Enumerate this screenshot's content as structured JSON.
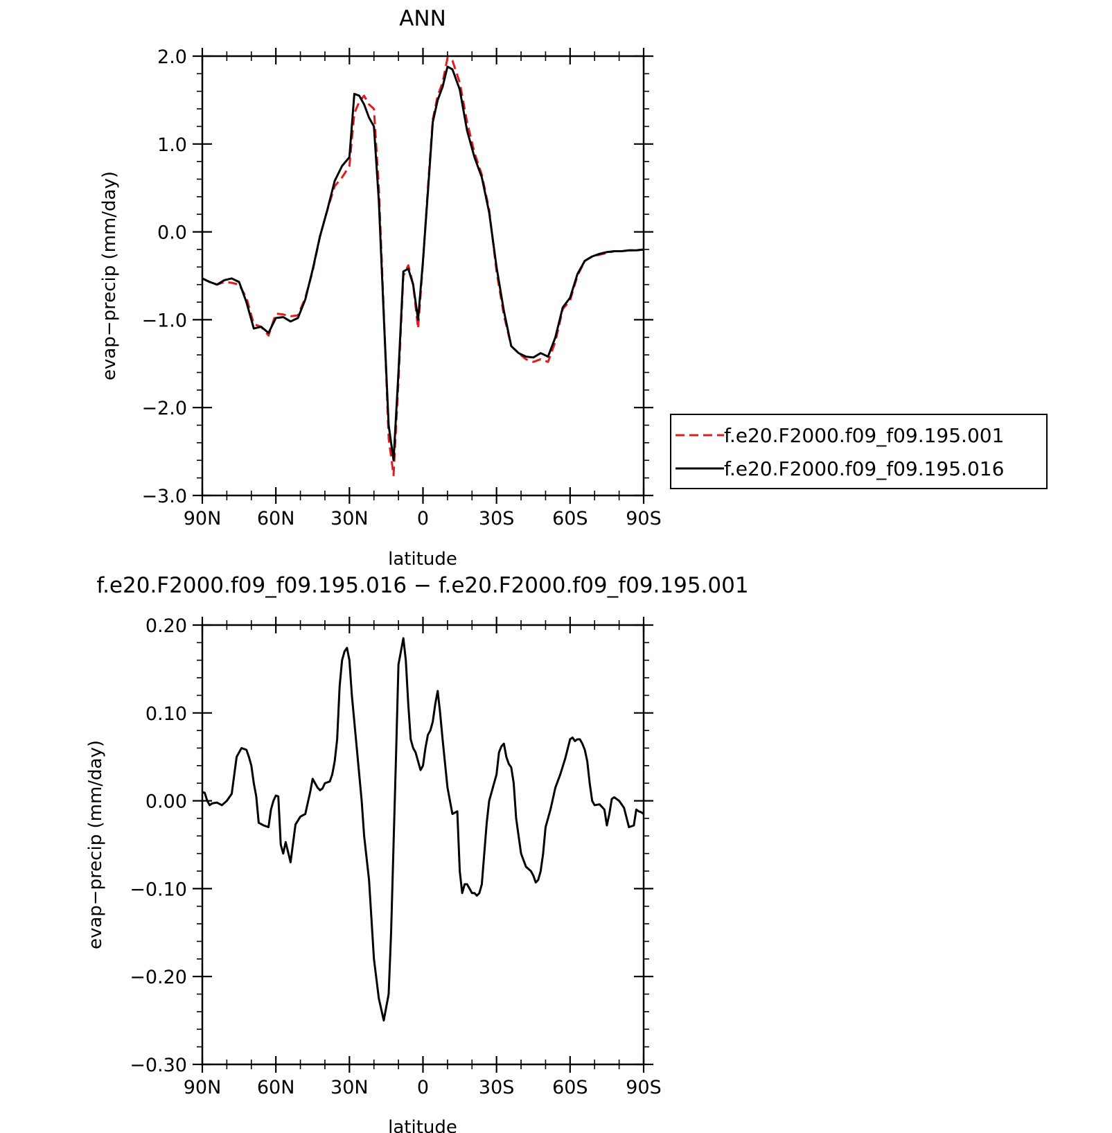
{
  "chart_data": [
    {
      "type": "line",
      "title": "ANN",
      "xlabel": "latitude",
      "ylabel": "evap−precip (mm/day)",
      "xlim": [
        90,
        -90
      ],
      "ylim": [
        -3.0,
        2.0
      ],
      "x_ticks": [
        90,
        60,
        30,
        0,
        -30,
        -60,
        -90
      ],
      "x_tick_labels": [
        "90N",
        "60N",
        "30N",
        "0",
        "30S",
        "60S",
        "90S"
      ],
      "y_ticks": [
        -3,
        -2,
        -1,
        0,
        1,
        2
      ],
      "y_tick_labels": [
        "−3.0",
        "−2.0",
        "−1.0",
        "0.0",
        "1.0",
        "2.0"
      ],
      "legend_position": "right",
      "series": [
        {
          "name": "f.e20.F2000.f09_f09.195.001",
          "color": "#e41a1c",
          "dash": "dashed",
          "x": [
            90,
            87,
            84,
            81,
            78,
            75,
            72,
            69,
            66,
            63,
            60,
            57,
            54,
            51,
            48,
            45,
            42,
            39,
            36,
            33,
            30,
            28,
            26,
            24,
            22,
            20,
            18,
            16,
            14,
            12,
            10,
            8,
            6,
            4,
            2,
            0,
            -2,
            -4,
            -6,
            -8,
            -10,
            -12,
            -15,
            -18,
            -21,
            -24,
            -27,
            -30,
            -33,
            -36,
            -39,
            -42,
            -45,
            -48,
            -51,
            -54,
            -57,
            -60,
            -63,
            -66,
            -69,
            -72,
            -75,
            -78,
            -81,
            -84,
            -87,
            -90
          ],
          "y": [
            -0.53,
            -0.57,
            -0.6,
            -0.57,
            -0.58,
            -0.6,
            -0.75,
            -1.05,
            -1.08,
            -1.18,
            -0.93,
            -0.94,
            -0.96,
            -0.95,
            -0.75,
            -0.45,
            -0.05,
            0.25,
            0.52,
            0.62,
            0.75,
            1.35,
            1.48,
            1.55,
            1.45,
            1.4,
            0.5,
            -0.9,
            -2.35,
            -2.77,
            -1.7,
            -0.5,
            -0.38,
            -0.6,
            -1.1,
            -0.35,
            0.5,
            1.28,
            1.55,
            1.7,
            1.98,
            1.95,
            1.7,
            1.25,
            0.9,
            0.65,
            0.25,
            -0.45,
            -0.95,
            -1.3,
            -1.38,
            -1.45,
            -1.48,
            -1.45,
            -1.48,
            -1.25,
            -0.88,
            -0.78,
            -0.5,
            -0.33,
            -0.28,
            -0.26,
            -0.24,
            -0.22,
            -0.22,
            -0.21,
            -0.21,
            -0.2
          ]
        },
        {
          "name": "f.e20.F2000.f09_f09.195.016",
          "color": "#000000",
          "dash": "solid",
          "x": [
            90,
            87,
            84,
            81,
            78,
            75,
            72,
            69,
            66,
            63,
            60,
            57,
            54,
            51,
            48,
            45,
            42,
            39,
            36,
            33,
            30,
            28,
            26,
            24,
            22,
            20,
            18,
            16,
            14,
            12,
            10,
            8,
            6,
            4,
            2,
            0,
            -2,
            -4,
            -6,
            -8,
            -10,
            -12,
            -15,
            -18,
            -21,
            -24,
            -27,
            -30,
            -33,
            -36,
            -39,
            -42,
            -45,
            -48,
            -51,
            -54,
            -57,
            -60,
            -63,
            -66,
            -69,
            -72,
            -75,
            -78,
            -81,
            -84,
            -87,
            -90
          ],
          "y": [
            -0.53,
            -0.57,
            -0.6,
            -0.55,
            -0.53,
            -0.57,
            -0.8,
            -1.1,
            -1.08,
            -1.15,
            -0.98,
            -0.97,
            -1.02,
            -0.98,
            -0.77,
            -0.43,
            -0.05,
            0.25,
            0.58,
            0.75,
            0.85,
            1.57,
            1.55,
            1.45,
            1.3,
            1.2,
            0.35,
            -0.95,
            -2.2,
            -2.6,
            -1.6,
            -0.45,
            -0.42,
            -0.6,
            -1.0,
            -0.33,
            0.45,
            1.25,
            1.5,
            1.65,
            1.88,
            1.85,
            1.62,
            1.15,
            0.85,
            0.62,
            0.22,
            -0.4,
            -0.9,
            -1.3,
            -1.38,
            -1.42,
            -1.43,
            -1.38,
            -1.42,
            -1.2,
            -0.86,
            -0.75,
            -0.48,
            -0.33,
            -0.28,
            -0.25,
            -0.23,
            -0.22,
            -0.22,
            -0.21,
            -0.21,
            -0.2
          ]
        }
      ]
    },
    {
      "type": "line",
      "title": "f.e20.F2000.f09_f09.195.016 − f.e20.F2000.f09_f09.195.001",
      "xlabel": "latitude",
      "ylabel": "evap−precip (mm/day)",
      "xlim": [
        90,
        -90
      ],
      "ylim": [
        -0.3,
        0.2
      ],
      "x_ticks": [
        90,
        60,
        30,
        0,
        -30,
        -60,
        -90
      ],
      "x_tick_labels": [
        "90N",
        "60N",
        "30N",
        "0",
        "30S",
        "60S",
        "90S"
      ],
      "y_ticks": [
        -0.3,
        -0.2,
        -0.1,
        0.0,
        0.1,
        0.2
      ],
      "y_tick_labels": [
        "−0.30",
        "−0.20",
        "−0.10",
        "0.00",
        "0.10",
        "0.20"
      ],
      "series": [
        {
          "color": "#000000",
          "dash": "solid",
          "x": [
            90,
            89,
            88,
            87,
            86,
            84,
            82,
            80,
            78,
            76,
            74,
            72,
            71,
            70,
            69,
            68,
            67,
            65,
            63,
            62,
            61,
            60,
            59,
            58,
            57,
            56,
            54,
            52,
            50,
            48,
            46,
            45,
            44,
            43,
            42,
            41,
            40,
            38,
            37,
            36,
            35,
            34,
            33,
            32,
            31,
            30,
            29,
            28,
            27,
            26,
            25,
            24,
            22,
            20,
            18,
            16,
            14,
            13,
            12,
            11,
            10,
            8,
            7,
            6,
            5,
            4,
            3,
            2,
            1,
            0,
            -1,
            -2,
            -3,
            -4,
            -5,
            -6,
            -7,
            -8,
            -10,
            -12,
            -14,
            -15,
            -16,
            -17,
            -18,
            -19,
            -20,
            -21,
            -22,
            -23,
            -24,
            -25,
            -26,
            -27,
            -28,
            -29,
            -30,
            -31,
            -32,
            -33,
            -34,
            -35,
            -36,
            -37,
            -38,
            -40,
            -42,
            -44,
            -45,
            -46,
            -47,
            -48,
            -49,
            -50,
            -52,
            -54,
            -56,
            -58,
            -60,
            -61,
            -62,
            -63,
            -64,
            -65,
            -66,
            -67,
            -68,
            -69,
            -70,
            -72,
            -74,
            -75,
            -76,
            -77,
            -78,
            -80,
            -82,
            -84,
            -86,
            -87,
            -88,
            -89,
            -90
          ],
          "y": [
            0.01,
            0.009,
            0.0,
            -0.005,
            -0.003,
            -0.002,
            -0.005,
            0.0,
            0.008,
            0.05,
            0.06,
            0.058,
            0.05,
            0.04,
            0.02,
            0.005,
            -0.025,
            -0.028,
            -0.03,
            -0.01,
            0.0,
            0.006,
            0.005,
            -0.05,
            -0.06,
            -0.047,
            -0.07,
            -0.027,
            -0.018,
            -0.015,
            0.01,
            0.025,
            0.02,
            0.015,
            0.012,
            0.014,
            0.02,
            0.022,
            0.03,
            0.045,
            0.07,
            0.13,
            0.16,
            0.17,
            0.174,
            0.16,
            0.12,
            0.09,
            0.06,
            0.03,
            0.0,
            -0.04,
            -0.09,
            -0.18,
            -0.225,
            -0.25,
            -0.22,
            -0.15,
            -0.05,
            0.05,
            0.155,
            0.185,
            0.16,
            0.11,
            0.07,
            0.06,
            0.055,
            0.045,
            0.035,
            0.04,
            0.06,
            0.075,
            0.08,
            0.09,
            0.11,
            0.125,
            0.1,
            0.07,
            0.015,
            -0.015,
            -0.012,
            -0.08,
            -0.105,
            -0.095,
            -0.095,
            -0.1,
            -0.105,
            -0.105,
            -0.108,
            -0.105,
            -0.095,
            -0.06,
            -0.025,
            0.0,
            0.01,
            0.02,
            0.03,
            0.055,
            0.062,
            0.065,
            0.05,
            0.042,
            0.038,
            0.02,
            -0.02,
            -0.06,
            -0.075,
            -0.08,
            -0.085,
            -0.093,
            -0.09,
            -0.08,
            -0.06,
            -0.03,
            -0.01,
            0.015,
            0.03,
            0.048,
            0.07,
            0.072,
            0.068,
            0.07,
            0.07,
            0.065,
            0.058,
            0.045,
            0.02,
            0.0,
            -0.005,
            -0.004,
            -0.01,
            -0.028,
            -0.015,
            0.002,
            0.004,
            0.0,
            -0.008,
            -0.03,
            -0.028,
            -0.01,
            -0.012,
            -0.013,
            -0.015
          ]
        }
      ]
    }
  ]
}
